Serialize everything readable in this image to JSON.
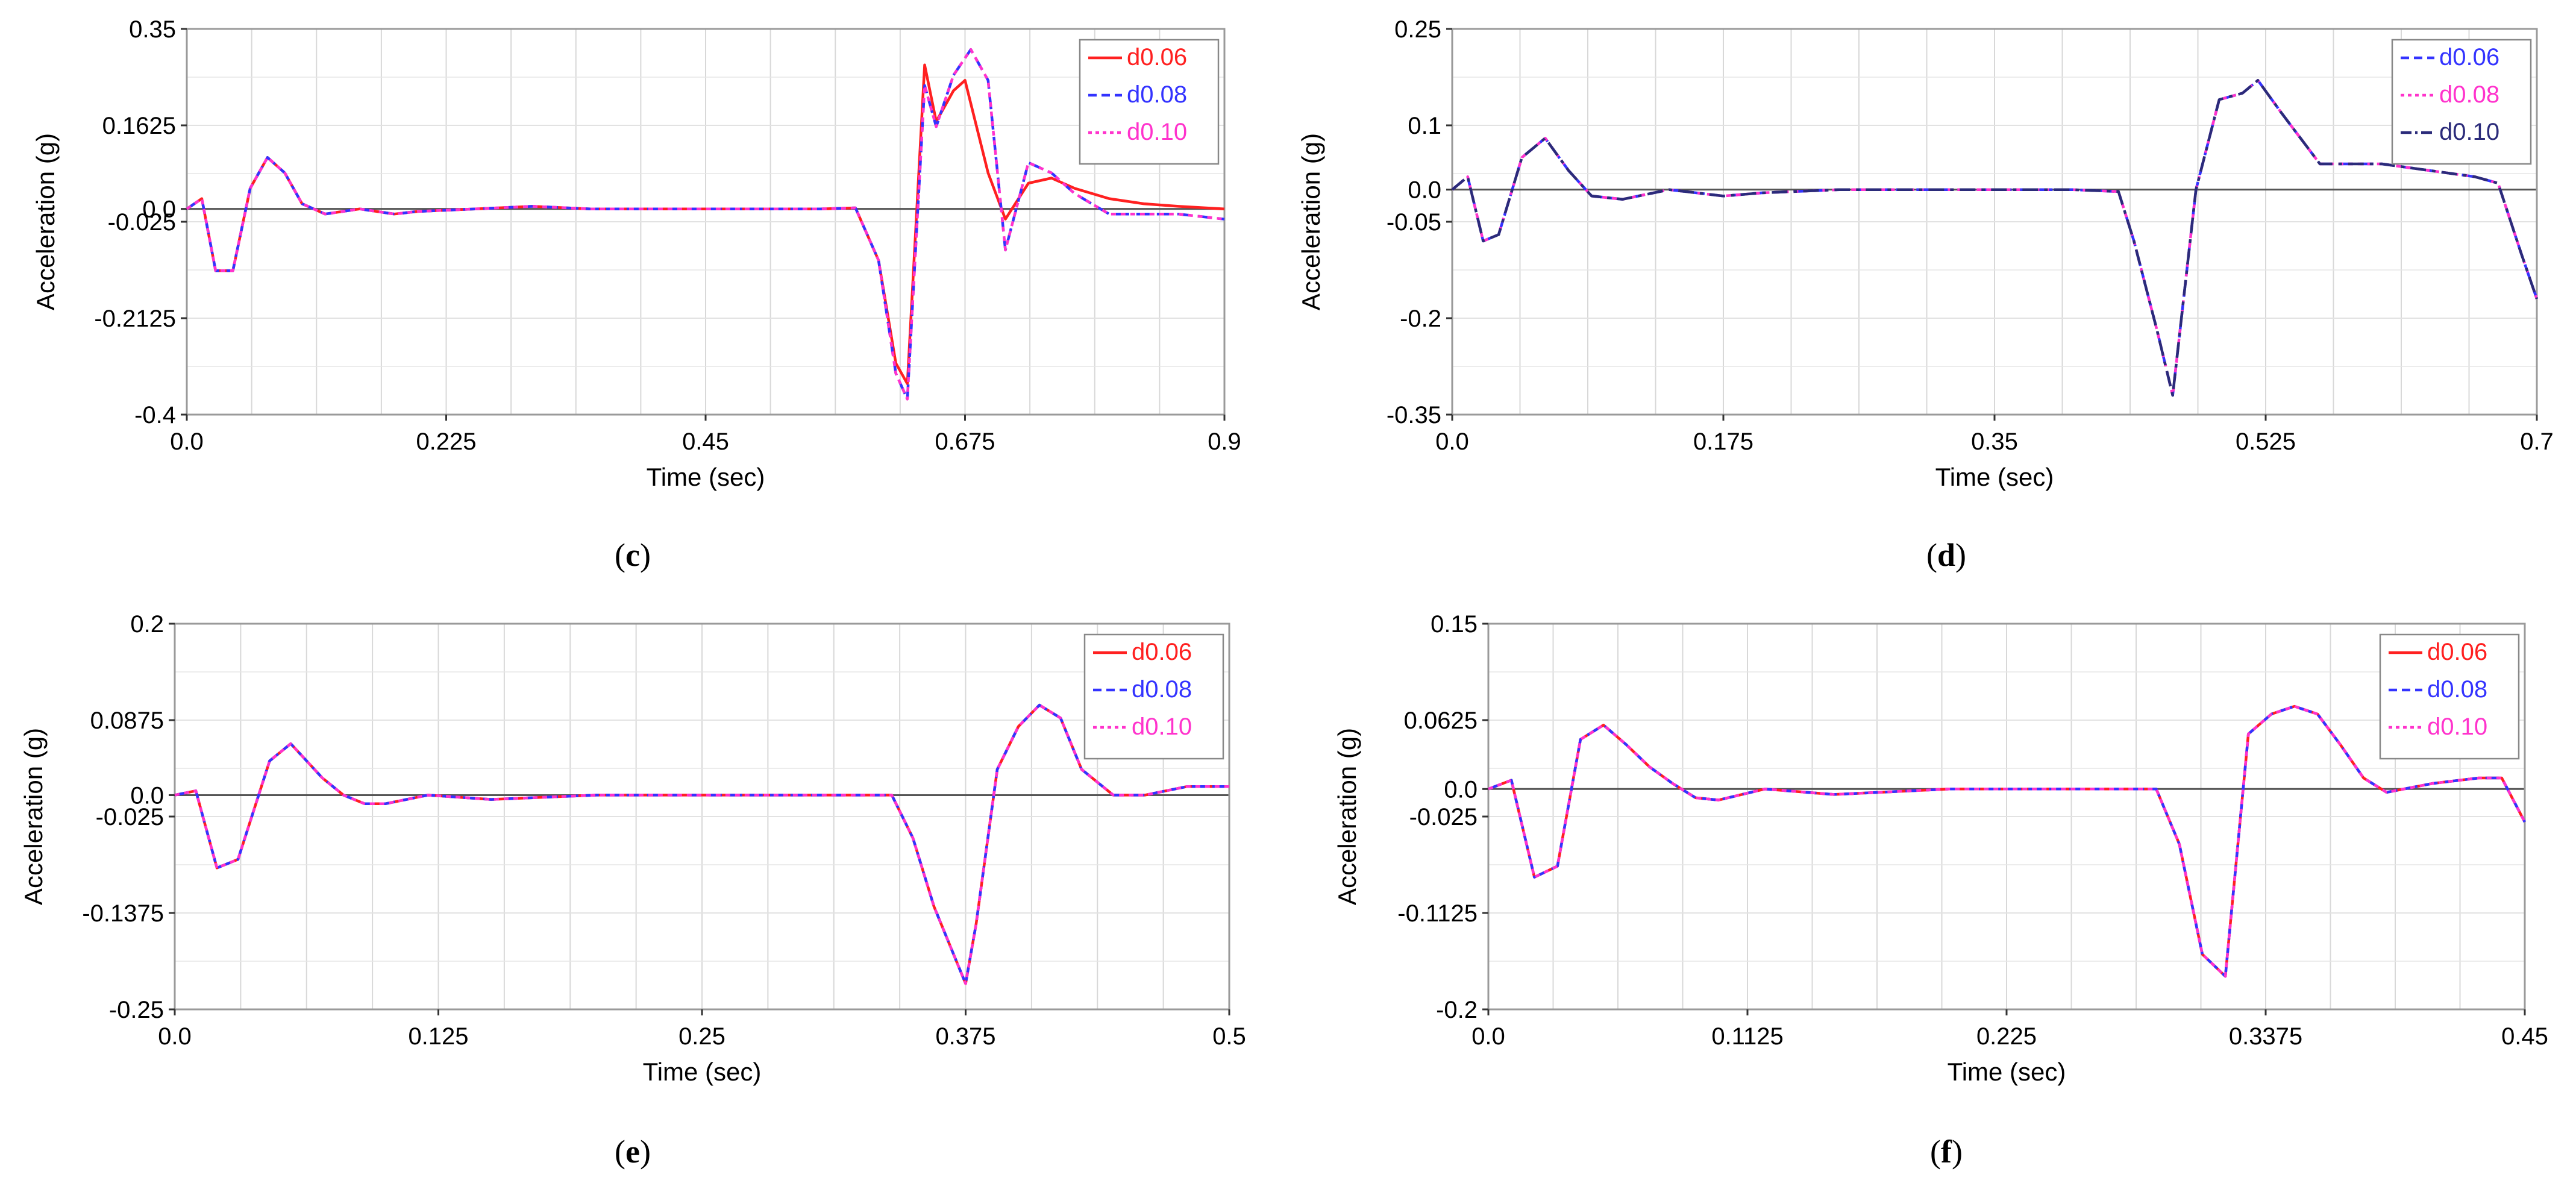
{
  "colors": {
    "d006": "#ff2020",
    "d008": "#3333ff",
    "d010": "#ff33cc",
    "d010_dark": "#2b2b7a"
  },
  "chart_data": [
    {
      "type": "line",
      "panel_label": "c",
      "xlabel": "Time (sec)",
      "ylabel": "Acceleration (g)",
      "xlim": [
        0,
        0.9
      ],
      "ylim": [
        -0.4,
        0.35
      ],
      "xticks": [
        "0.0",
        "0.225",
        "0.45",
        "0.675",
        "0.9"
      ],
      "yticks": [
        "0.35",
        "0.1625",
        "0.0",
        "-0.025",
        "-0.2125",
        "-0.4"
      ],
      "grid": true,
      "legend": "top-right",
      "series": [
        {
          "name": "d0.06",
          "color": "#ff2020",
          "dash": "solid",
          "x": [
            0,
            0.013,
            0.025,
            0.04,
            0.055,
            0.07,
            0.085,
            0.1,
            0.12,
            0.15,
            0.18,
            0.2,
            0.25,
            0.3,
            0.35,
            0.4,
            0.45,
            0.5,
            0.55,
            0.58,
            0.6,
            0.615,
            0.625,
            0.64,
            0.65,
            0.665,
            0.675,
            0.695,
            0.71,
            0.73,
            0.75,
            0.77,
            0.8,
            0.83,
            0.86,
            0.9
          ],
          "y": [
            0,
            0.02,
            -0.12,
            -0.12,
            0.04,
            0.1,
            0.07,
            0.01,
            -0.01,
            0,
            -0.01,
            -0.005,
            0,
            0.005,
            0,
            0,
            0,
            0,
            0,
            0.002,
            -0.1,
            -0.3,
            -0.34,
            0.28,
            0.17,
            0.23,
            0.25,
            0.07,
            -0.02,
            0.05,
            0.06,
            0.04,
            0.02,
            0.01,
            0.005,
            0
          ]
        },
        {
          "name": "d0.08",
          "color": "#3333ff",
          "dash": "dashed",
          "x": [
            0,
            0.013,
            0.025,
            0.04,
            0.055,
            0.07,
            0.085,
            0.1,
            0.12,
            0.15,
            0.18,
            0.2,
            0.25,
            0.3,
            0.35,
            0.4,
            0.45,
            0.5,
            0.55,
            0.58,
            0.6,
            0.615,
            0.625,
            0.64,
            0.65,
            0.665,
            0.68,
            0.695,
            0.71,
            0.73,
            0.75,
            0.77,
            0.8,
            0.83,
            0.86,
            0.9
          ],
          "y": [
            0,
            0.02,
            -0.12,
            -0.12,
            0.04,
            0.1,
            0.07,
            0.01,
            -0.01,
            0,
            -0.01,
            -0.005,
            0,
            0.005,
            0,
            0,
            0,
            0,
            0,
            0.002,
            -0.1,
            -0.32,
            -0.37,
            0.24,
            0.16,
            0.26,
            0.31,
            0.25,
            -0.08,
            0.09,
            0.07,
            0.03,
            -0.01,
            -0.01,
            -0.01,
            -0.02
          ]
        },
        {
          "name": "d0.10",
          "color": "#ff33cc",
          "dash": "dotted",
          "x": [
            0,
            0.013,
            0.025,
            0.04,
            0.055,
            0.07,
            0.085,
            0.1,
            0.12,
            0.15,
            0.18,
            0.2,
            0.25,
            0.3,
            0.35,
            0.4,
            0.45,
            0.5,
            0.55,
            0.58,
            0.6,
            0.615,
            0.625,
            0.64,
            0.65,
            0.665,
            0.68,
            0.695,
            0.71,
            0.73,
            0.75,
            0.77,
            0.8,
            0.83,
            0.86,
            0.9
          ],
          "y": [
            0,
            0.02,
            -0.12,
            -0.12,
            0.04,
            0.1,
            0.07,
            0.01,
            -0.01,
            0,
            -0.01,
            -0.005,
            0,
            0.005,
            0,
            0,
            0,
            0,
            0,
            0.002,
            -0.1,
            -0.32,
            -0.37,
            0.24,
            0.16,
            0.26,
            0.31,
            0.25,
            -0.08,
            0.09,
            0.07,
            0.03,
            -0.01,
            -0.01,
            -0.01,
            -0.02
          ]
        }
      ]
    },
    {
      "type": "line",
      "panel_label": "d",
      "xlabel": "Time (sec)",
      "ylabel": "Acceleration (g)",
      "xlim": [
        0,
        0.7
      ],
      "ylim": [
        -0.35,
        0.25
      ],
      "xticks": [
        "0.0",
        "0.175",
        "0.35",
        "0.525",
        "0.7"
      ],
      "yticks": [
        "0.25",
        "0.1",
        "0.0",
        "-0.05",
        "-0.2",
        "-0.35"
      ],
      "grid": true,
      "legend": "top-right",
      "series": [
        {
          "name": "d0.06",
          "color": "#3333ff",
          "dash": "dashed",
          "x": [
            0,
            0.01,
            0.02,
            0.03,
            0.045,
            0.06,
            0.075,
            0.09,
            0.11,
            0.14,
            0.175,
            0.2,
            0.25,
            0.3,
            0.35,
            0.4,
            0.43,
            0.44,
            0.455,
            0.465,
            0.48,
            0.495,
            0.51,
            0.52,
            0.535,
            0.56,
            0.6,
            0.63,
            0.66,
            0.675,
            0.69,
            0.7
          ],
          "y": [
            0,
            0.02,
            -0.08,
            -0.07,
            0.05,
            0.08,
            0.03,
            -0.01,
            -0.015,
            0,
            -0.01,
            -0.005,
            0,
            0,
            0,
            0,
            -0.003,
            -0.08,
            -0.22,
            -0.32,
            0.0,
            0.14,
            0.15,
            0.17,
            0.12,
            0.04,
            0.04,
            0.03,
            0.02,
            0.01,
            -0.1,
            -0.17
          ]
        },
        {
          "name": "d0.08",
          "color": "#ff33cc",
          "dash": "dotted",
          "x": [
            0,
            0.01,
            0.02,
            0.03,
            0.045,
            0.06,
            0.075,
            0.09,
            0.11,
            0.14,
            0.175,
            0.2,
            0.25,
            0.3,
            0.35,
            0.4,
            0.43,
            0.44,
            0.455,
            0.465,
            0.48,
            0.495,
            0.51,
            0.52,
            0.535,
            0.56,
            0.6,
            0.63,
            0.66,
            0.675,
            0.69,
            0.7
          ],
          "y": [
            0,
            0.02,
            -0.08,
            -0.07,
            0.05,
            0.08,
            0.03,
            -0.01,
            -0.015,
            0,
            -0.01,
            -0.005,
            0,
            0,
            0,
            0,
            -0.003,
            -0.08,
            -0.22,
            -0.32,
            0.0,
            0.14,
            0.15,
            0.17,
            0.12,
            0.04,
            0.04,
            0.03,
            0.02,
            0.01,
            -0.1,
            -0.17
          ]
        },
        {
          "name": "d0.10",
          "color": "#2b2b7a",
          "dash": "dashdot",
          "x": [
            0,
            0.01,
            0.02,
            0.03,
            0.045,
            0.06,
            0.075,
            0.09,
            0.11,
            0.14,
            0.175,
            0.2,
            0.25,
            0.3,
            0.35,
            0.4,
            0.43,
            0.44,
            0.455,
            0.465,
            0.48,
            0.495,
            0.51,
            0.52,
            0.535,
            0.56,
            0.6,
            0.63,
            0.66,
            0.675,
            0.69,
            0.7
          ],
          "y": [
            0,
            0.02,
            -0.08,
            -0.07,
            0.05,
            0.08,
            0.03,
            -0.01,
            -0.015,
            0,
            -0.01,
            -0.005,
            0,
            0,
            0,
            0,
            -0.003,
            -0.08,
            -0.22,
            -0.32,
            0.0,
            0.14,
            0.15,
            0.17,
            0.12,
            0.04,
            0.04,
            0.03,
            0.02,
            0.01,
            -0.1,
            -0.17
          ]
        }
      ]
    },
    {
      "type": "line",
      "panel_label": "e",
      "xlabel": "Time (sec)",
      "ylabel": "Acceleration (g)",
      "xlim": [
        0,
        0.5
      ],
      "ylim": [
        -0.25,
        0.2
      ],
      "xticks": [
        "0.0",
        "0.125",
        "0.25",
        "0.375",
        "0.5"
      ],
      "yticks": [
        "0.2",
        "0.0875",
        "0.0",
        "-0.025",
        "-0.1375",
        "-0.25"
      ],
      "grid": true,
      "legend": "top-right",
      "series": [
        {
          "name": "d0.06",
          "color": "#ff2020",
          "dash": "solid",
          "x": [
            0,
            0.01,
            0.02,
            0.03,
            0.045,
            0.055,
            0.07,
            0.08,
            0.09,
            0.1,
            0.12,
            0.15,
            0.2,
            0.25,
            0.3,
            0.34,
            0.35,
            0.36,
            0.375,
            0.38,
            0.39,
            0.4,
            0.41,
            0.42,
            0.43,
            0.445,
            0.46,
            0.48,
            0.5
          ],
          "y": [
            0,
            0.005,
            -0.085,
            -0.075,
            0.04,
            0.06,
            0.02,
            0.0,
            -0.01,
            -0.01,
            0.0,
            -0.005,
            0,
            0,
            0,
            0,
            -0.05,
            -0.13,
            -0.22,
            -0.15,
            0.03,
            0.08,
            0.105,
            0.09,
            0.03,
            0.0,
            0.0,
            0.01,
            0.01
          ]
        },
        {
          "name": "d0.08",
          "color": "#3333ff",
          "dash": "dashed",
          "x": [
            0,
            0.01,
            0.02,
            0.03,
            0.045,
            0.055,
            0.07,
            0.08,
            0.09,
            0.1,
            0.12,
            0.15,
            0.2,
            0.25,
            0.3,
            0.34,
            0.35,
            0.36,
            0.375,
            0.38,
            0.39,
            0.4,
            0.41,
            0.42,
            0.43,
            0.445,
            0.46,
            0.48,
            0.5
          ],
          "y": [
            0,
            0.005,
            -0.085,
            -0.075,
            0.04,
            0.06,
            0.02,
            0.0,
            -0.01,
            -0.01,
            0.0,
            -0.005,
            0,
            0,
            0,
            0,
            -0.05,
            -0.13,
            -0.22,
            -0.15,
            0.03,
            0.08,
            0.105,
            0.09,
            0.03,
            0.0,
            0.0,
            0.01,
            0.01
          ]
        },
        {
          "name": "d0.10",
          "color": "#ff33cc",
          "dash": "dotted",
          "x": [
            0,
            0.01,
            0.02,
            0.03,
            0.045,
            0.055,
            0.07,
            0.08,
            0.09,
            0.1,
            0.12,
            0.15,
            0.2,
            0.25,
            0.3,
            0.34,
            0.35,
            0.36,
            0.375,
            0.38,
            0.39,
            0.4,
            0.41,
            0.42,
            0.43,
            0.445,
            0.46,
            0.48,
            0.5
          ],
          "y": [
            0,
            0.005,
            -0.085,
            -0.075,
            0.04,
            0.06,
            0.02,
            0.0,
            -0.01,
            -0.01,
            0.0,
            -0.005,
            0,
            0,
            0,
            0,
            -0.05,
            -0.13,
            -0.22,
            -0.15,
            0.03,
            0.08,
            0.105,
            0.09,
            0.03,
            0.0,
            0.0,
            0.01,
            0.01
          ]
        }
      ]
    },
    {
      "type": "line",
      "panel_label": "f",
      "xlabel": "Time (sec)",
      "ylabel": "Acceleration (g)",
      "xlim": [
        0,
        0.45
      ],
      "ylim": [
        -0.2,
        0.15
      ],
      "xticks": [
        "0.0",
        "0.1125",
        "0.225",
        "0.3375",
        "0.45"
      ],
      "yticks": [
        "0.15",
        "0.0625",
        "0.0",
        "-0.025",
        "-0.1125",
        "-0.2"
      ],
      "grid": true,
      "legend": "top-right",
      "series": [
        {
          "name": "d0.06",
          "color": "#ff2020",
          "dash": "solid",
          "x": [
            0,
            0.01,
            0.02,
            0.03,
            0.04,
            0.05,
            0.06,
            0.07,
            0.08,
            0.09,
            0.1,
            0.12,
            0.15,
            0.2,
            0.25,
            0.29,
            0.3,
            0.31,
            0.32,
            0.33,
            0.34,
            0.35,
            0.36,
            0.37,
            0.38,
            0.39,
            0.41,
            0.43,
            0.44,
            0.45
          ],
          "y": [
            0,
            0.008,
            -0.08,
            -0.07,
            0.045,
            0.058,
            0.04,
            0.02,
            0.005,
            -0.008,
            -0.01,
            0.0,
            -0.005,
            0,
            0,
            0,
            -0.05,
            -0.15,
            -0.17,
            0.05,
            0.068,
            0.075,
            0.068,
            0.04,
            0.01,
            -0.003,
            0.005,
            0.01,
            0.01,
            -0.03
          ]
        },
        {
          "name": "d0.08",
          "color": "#3333ff",
          "dash": "dashed",
          "x": [
            0,
            0.01,
            0.02,
            0.03,
            0.04,
            0.05,
            0.06,
            0.07,
            0.08,
            0.09,
            0.1,
            0.12,
            0.15,
            0.2,
            0.25,
            0.29,
            0.3,
            0.31,
            0.32,
            0.33,
            0.34,
            0.35,
            0.36,
            0.37,
            0.38,
            0.39,
            0.41,
            0.43,
            0.44,
            0.45
          ],
          "y": [
            0,
            0.008,
            -0.08,
            -0.07,
            0.045,
            0.058,
            0.04,
            0.02,
            0.005,
            -0.008,
            -0.01,
            0.0,
            -0.005,
            0,
            0,
            0,
            -0.05,
            -0.15,
            -0.17,
            0.05,
            0.068,
            0.075,
            0.068,
            0.04,
            0.01,
            -0.003,
            0.005,
            0.01,
            0.01,
            -0.03
          ]
        },
        {
          "name": "d0.10",
          "color": "#ff33cc",
          "dash": "dotted",
          "x": [
            0,
            0.01,
            0.02,
            0.03,
            0.04,
            0.05,
            0.06,
            0.07,
            0.08,
            0.09,
            0.1,
            0.12,
            0.15,
            0.2,
            0.25,
            0.29,
            0.3,
            0.31,
            0.32,
            0.33,
            0.34,
            0.35,
            0.36,
            0.37,
            0.38,
            0.39,
            0.41,
            0.43,
            0.44,
            0.45
          ],
          "y": [
            0,
            0.008,
            -0.08,
            -0.07,
            0.045,
            0.058,
            0.04,
            0.02,
            0.005,
            -0.008,
            -0.01,
            0.0,
            -0.005,
            0,
            0,
            0,
            -0.05,
            -0.15,
            -0.17,
            0.05,
            0.068,
            0.075,
            0.068,
            0.04,
            0.01,
            -0.003,
            0.005,
            0.01,
            0.01,
            -0.03
          ]
        }
      ]
    }
  ]
}
